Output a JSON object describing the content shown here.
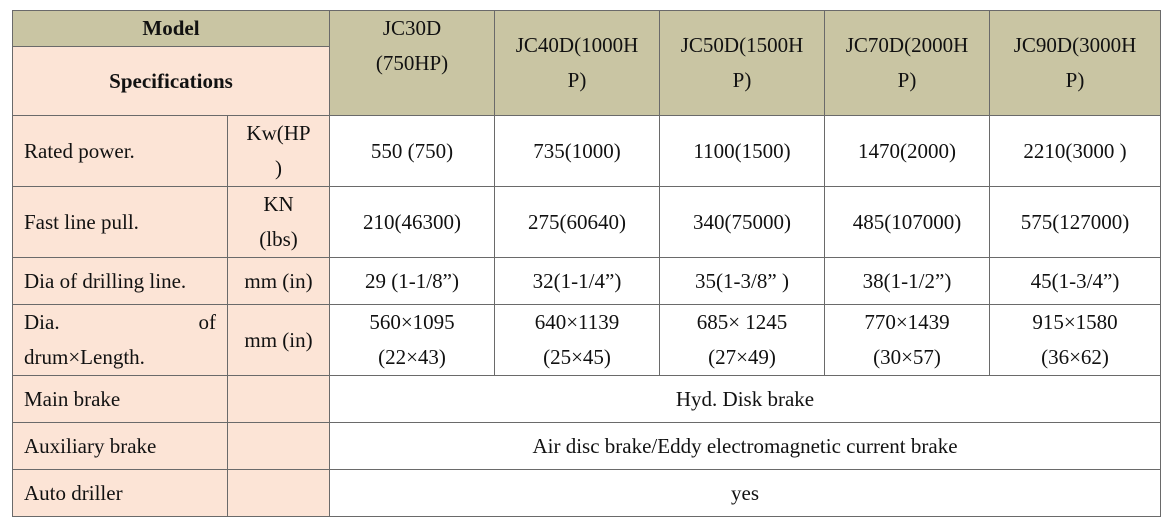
{
  "header": {
    "model": "Model",
    "specifications": "Specifications",
    "columns": [
      {
        "line1": "JC30D",
        "line2": "(750HP)"
      },
      {
        "line1": "JC40D(1000H",
        "line2": "P)"
      },
      {
        "line1": "JC50D(1500H",
        "line2": "P)"
      },
      {
        "line1": "JC70D(2000H",
        "line2": "P)"
      },
      {
        "line1": "JC90D(3000H",
        "line2": "P)"
      }
    ]
  },
  "rows": {
    "rated_power": {
      "label": "Rated power.",
      "unit_line1": "Kw(HP",
      "unit_line2": ")",
      "values": [
        "550 (750)",
        "735(1000)",
        "1100(1500)",
        "1470(2000)",
        "2210(3000 )"
      ]
    },
    "fast_line_pull": {
      "label": "Fast line pull.",
      "unit_line1": "KN",
      "unit_line2": "(lbs)",
      "values": [
        "210(46300)",
        "275(60640)",
        "340(75000)",
        "485(107000)",
        "575(127000)"
      ]
    },
    "dia_drilling_line": {
      "label": "Dia of drilling line.",
      "unit": "mm (in)",
      "values": [
        "29 (1-1/8”)",
        "32(1-1/4”)",
        "35(1-3/8” )",
        "38(1-1/2”)",
        "45(1-3/4”)"
      ]
    },
    "drum_size": {
      "label_word1": "Dia.",
      "label_word2": "of",
      "label_line2": "drum×Length.",
      "unit": "mm (in)",
      "values": [
        {
          "line1": "560×1095",
          "line2": "(22×43)"
        },
        {
          "line1": "640×1139",
          "line2": "(25×45)"
        },
        {
          "line1": "685× 1245",
          "line2": "(27×49)"
        },
        {
          "line1": "770×1439",
          "line2": "(30×57)"
        },
        {
          "line1": "915×1580",
          "line2": "(36×62)"
        }
      ]
    },
    "main_brake": {
      "label": "Main brake",
      "value": "Hyd. Disk brake"
    },
    "auxiliary_brake": {
      "label": "Auxiliary brake",
      "value": "Air disc brake/Eddy electromagnetic current brake"
    },
    "auto_driller": {
      "label": "Auto driller",
      "value": "yes"
    }
  },
  "colors": {
    "header_olive": "#c9c5a3",
    "label_peach": "#fce4d6",
    "border": "#6a6a6a"
  }
}
